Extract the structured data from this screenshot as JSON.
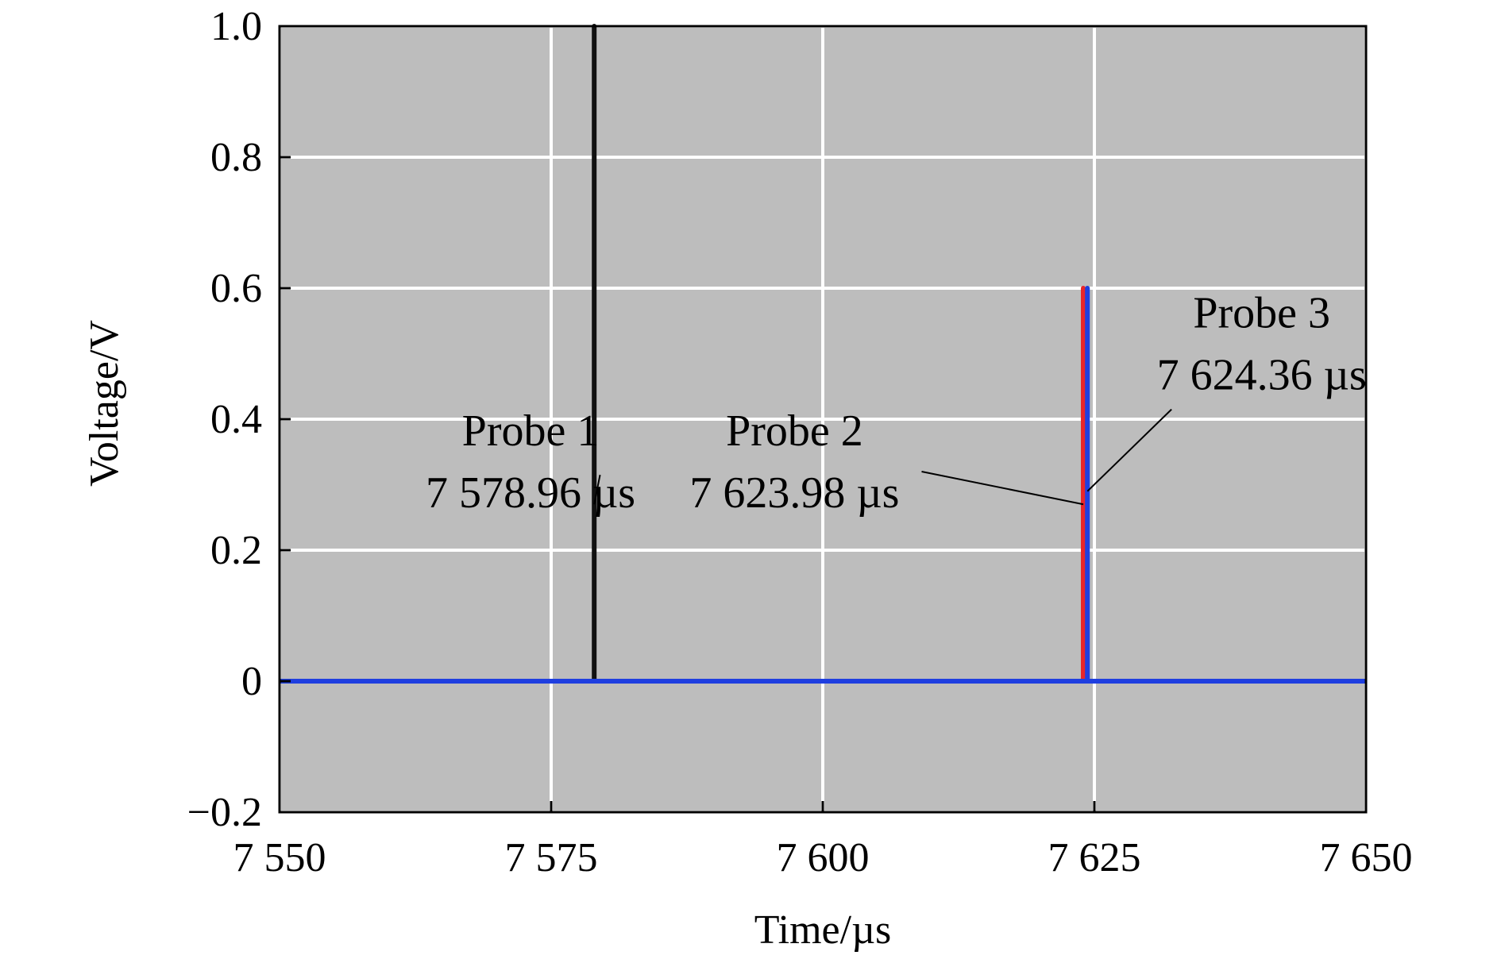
{
  "chart_data": {
    "type": "line",
    "title": "",
    "xlabel": "Time/µs",
    "ylabel": "Voltage/V",
    "xlim": [
      7550,
      7650
    ],
    "ylim": [
      -0.2,
      1.0
    ],
    "x_ticks": [
      7550,
      7575,
      7600,
      7625,
      7650
    ],
    "x_tick_labels": [
      "7 550",
      "7 575",
      "7 600",
      "7 625",
      "7 650"
    ],
    "y_ticks": [
      -0.2,
      0,
      0.2,
      0.4,
      0.6,
      0.8,
      1.0
    ],
    "y_tick_labels": [
      "−0.2",
      "0",
      "0.2",
      "0.4",
      "0.6",
      "0.8",
      "1.0"
    ],
    "grid": true,
    "plot_background": "#bdbdbd",
    "grid_color": "#ffffff",
    "series": [
      {
        "color": "#111111",
        "x": [
          7550,
          7578.96,
          7578.96,
          7578.96,
          7578.96,
          7650
        ],
        "y": [
          0,
          0,
          1.0,
          1.0,
          0,
          0
        ]
      },
      {
        "color": "#e8262a",
        "x": [
          7550,
          7623.98,
          7623.98,
          7623.98,
          7623.98,
          7650
        ],
        "y": [
          0,
          0,
          0.6,
          0.6,
          0,
          0
        ]
      },
      {
        "color": "#1f3fe0",
        "x": [
          7550,
          7624.36,
          7624.36,
          7624.36,
          7624.36,
          7650
        ],
        "y": [
          0,
          0,
          0.6,
          0.6,
          0,
          0
        ]
      }
    ],
    "annotations": [
      {
        "name": "Probe 1",
        "time": "7 578.96 µs",
        "text_x": 7573.1,
        "text_y": 0.36,
        "arrow_from": [
          7579.5,
          0.315
        ],
        "arrow_to": [
          7578.96,
          0.27
        ]
      },
      {
        "name": "Probe 2",
        "time": "7 623.98 µs",
        "text_x": 7597.4,
        "text_y": 0.36,
        "arrow_from": [
          7609.1,
          0.32
        ],
        "arrow_to": [
          7623.98,
          0.27
        ]
      },
      {
        "name": "Probe 3",
        "time": "7 624.36 µs",
        "text_x": 7640.4,
        "text_y": 0.54,
        "arrow_from": [
          7632.1,
          0.415
        ],
        "arrow_to": [
          7624.36,
          0.29
        ]
      }
    ]
  }
}
